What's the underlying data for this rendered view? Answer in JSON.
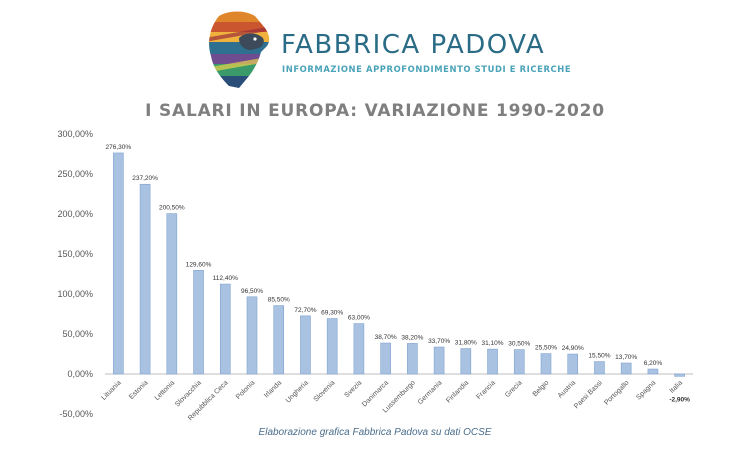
{
  "header": {
    "brand_name": "FABBRICA PADOVA",
    "tagline": "INFORMAZIONE APPROFONDIMENTO STUDI E RICERCHE"
  },
  "footer": {
    "caption": "Elaborazione grafica Fabbrica Padova su dati OCSE"
  },
  "colors": {
    "bar_fill": "#a9c2e2",
    "bar_stroke": "#7fa3cf",
    "axis_text": "#555555",
    "brand": "#2a6b86"
  },
  "chart_data": {
    "type": "bar",
    "title": "I SALARI IN EUROPA: VARIAZIONE 1990-2020",
    "xlabel": "",
    "ylabel": "",
    "ylim": [
      -50,
      300
    ],
    "y_ticks": [
      "-50,00%",
      "0,00%",
      "50,00%",
      "100,00%",
      "150,00%",
      "200,00%",
      "250,00%",
      "300,00%"
    ],
    "y_tick_values": [
      -50,
      0,
      50,
      100,
      150,
      200,
      250,
      300
    ],
    "grid": false,
    "categories": [
      "Lituania",
      "Estonia",
      "Lettonia",
      "Slovacchia",
      "Repubblica Ceca",
      "Polonia",
      "Irlanda",
      "Ungheria",
      "Slovenia",
      "Svezia",
      "Danimarca",
      "Lussemburgo",
      "Germania",
      "Finlandia",
      "Francia",
      "Grecia",
      "Belgio",
      "Austria",
      "Paesi Bassi",
      "Portogallo",
      "Spagna",
      "Italia"
    ],
    "values": [
      276.3,
      237.2,
      200.5,
      129.6,
      112.4,
      96.5,
      85.5,
      72.7,
      69.3,
      63.0,
      38.7,
      38.2,
      33.7,
      31.8,
      31.1,
      30.5,
      25.5,
      24.9,
      15.5,
      13.7,
      6.2,
      -2.9
    ],
    "data_labels": [
      "276,30%",
      "237,20%",
      "200,50%",
      "129,60%",
      "112,40%",
      "96,50%",
      "85,50%",
      "72,70%",
      "69,30%",
      "63,00%",
      "38,70%",
      "38,20%",
      "33,70%",
      "31,80%",
      "31,10%",
      "30,50%",
      "25,50%",
      "24,90%",
      "15,50%",
      "13,70%",
      "6,20%",
      "-2,90%"
    ]
  }
}
